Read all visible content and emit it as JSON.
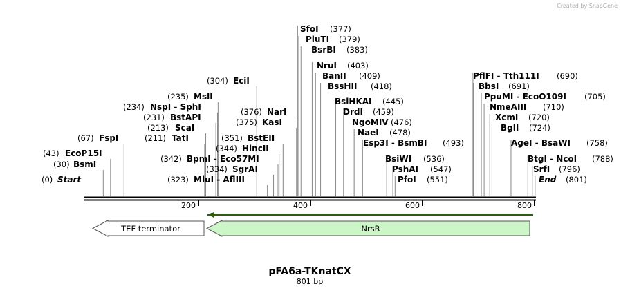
{
  "credit": "Created by SnapGene",
  "enzymes": [
    {
      "name": "Start",
      "site": 0,
      "site_label": "(0)"
    },
    {
      "name": "BsmI",
      "site": 30,
      "site_label": "(30)"
    },
    {
      "name": "EcoP15I",
      "site": 43,
      "site_label": "(43)"
    },
    {
      "name": "FspI",
      "site": 67,
      "site_label": "(67)"
    },
    {
      "name": "TatI",
      "site": 211,
      "site_label": "(211)"
    },
    {
      "name": "ScaI",
      "site": 213,
      "site_label": "(213)"
    },
    {
      "name": "BstAPI",
      "site": 231,
      "site_label": "(231)"
    },
    {
      "name": "NspI  - SphI",
      "site": 234,
      "site_label": "(234)"
    },
    {
      "name": "MslI",
      "site": 235,
      "site_label": "(235)"
    },
    {
      "name": "EciI",
      "site": 304,
      "site_label": "(304)"
    },
    {
      "name": "BpmI  - Eco57MI",
      "site": 342,
      "site_label": "(342)"
    },
    {
      "name": "HincII",
      "site": 344,
      "site_label": "(344)"
    },
    {
      "name": "BstEII",
      "site": 351,
      "site_label": "(351)"
    },
    {
      "name": "SgrAI",
      "site": 334,
      "site_label": "(334)"
    },
    {
      "name": "MluI  - AflIII",
      "site": 323,
      "site_label": "(323)"
    },
    {
      "name": "KasI",
      "site": 375,
      "site_label": "(375)"
    },
    {
      "name": "NarI",
      "site": 376,
      "site_label": "(376)"
    },
    {
      "name": "SfoI",
      "site": 377,
      "site_label": "(377)"
    },
    {
      "name": "PluTI",
      "site": 379,
      "site_label": "(379)"
    },
    {
      "name": "BsrBI",
      "site": 383,
      "site_label": "(383)"
    },
    {
      "name": "NruI",
      "site": 403,
      "site_label": "(403)"
    },
    {
      "name": "BanII",
      "site": 409,
      "site_label": "(409)"
    },
    {
      "name": "BssHII",
      "site": 418,
      "site_label": "(418)"
    },
    {
      "name": "BsiHKAI",
      "site": 445,
      "site_label": "(445)"
    },
    {
      "name": "DrdI",
      "site": 459,
      "site_label": "(459)"
    },
    {
      "name": "NgoMIV",
      "site": 476,
      "site_label": "(476)"
    },
    {
      "name": "NaeI",
      "site": 478,
      "site_label": "(478)"
    },
    {
      "name": "Esp3I  - BsmBI",
      "site": 493,
      "site_label": "(493)"
    },
    {
      "name": "BsiWI",
      "site": 536,
      "site_label": "(536)"
    },
    {
      "name": "PshAI",
      "site": 547,
      "site_label": "(547)"
    },
    {
      "name": "PfoI",
      "site": 551,
      "site_label": "(551)"
    },
    {
      "name": "PflFI  - Tth111I",
      "site": 690,
      "site_label": "(690)"
    },
    {
      "name": "BbsI",
      "site": 691,
      "site_label": "(691)"
    },
    {
      "name": "PpuMI  - EcoO109I",
      "site": 705,
      "site_label": "(705)"
    },
    {
      "name": "NmeAIII",
      "site": 710,
      "site_label": "(710)"
    },
    {
      "name": "XcmI",
      "site": 720,
      "site_label": "(720)"
    },
    {
      "name": "BglI",
      "site": 724,
      "site_label": "(724)"
    },
    {
      "name": "AgeI  - BsaWI",
      "site": 758,
      "site_label": "(758)"
    },
    {
      "name": "BtgI  - NcoI",
      "site": 788,
      "site_label": "(788)"
    },
    {
      "name": "SrfI",
      "site": 796,
      "site_label": "(796)"
    },
    {
      "name": "End",
      "site": 801,
      "site_label": "(801)"
    }
  ],
  "ruler": {
    "ticks": [
      200,
      400,
      600,
      800
    ]
  },
  "features": [
    {
      "name": "TEF terminator"
    },
    {
      "name": "NrsR"
    }
  ],
  "title": "pFA6a-TKnatCX",
  "length": "801 bp"
}
